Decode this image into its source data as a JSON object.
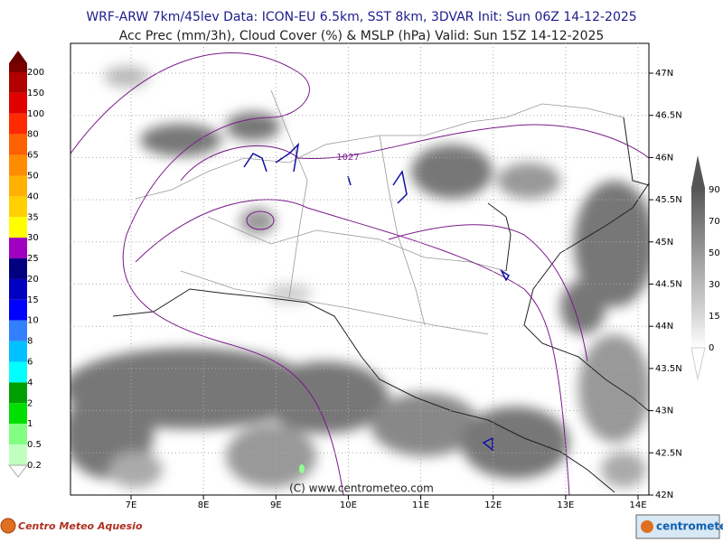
{
  "header": {
    "line1": "WRF-ARW 7km/45lev  Data: ICON-EU 6.5km, SST 8km, 3DVAR  Init: Sun 06Z 14-12-2025",
    "line2": "Acc Prec (mm/3h), Cloud Cover (%) & MSLP (hPa)  Valid: Sun 15Z 14-12-2025"
  },
  "precip_legend": {
    "labels": [
      "200",
      "150",
      "100",
      "80",
      "65",
      "50",
      "40",
      "35",
      "30",
      "25",
      "20",
      "15",
      "10",
      "8",
      "6",
      "4",
      "2",
      "1",
      "0.5",
      "0.2"
    ]
  },
  "cloud_legend": {
    "labels": [
      "90",
      "70",
      "50",
      "30",
      "15",
      "0"
    ]
  },
  "map": {
    "lat_labels": [
      "47N",
      "46.5N",
      "46N",
      "45.5N",
      "45N",
      "44.5N",
      "44N",
      "43.5N",
      "43N",
      "42.5N",
      "42N"
    ],
    "lon_labels": [
      "7E",
      "8E",
      "9E",
      "10E",
      "11E",
      "12E",
      "13E",
      "14E"
    ],
    "isobar_label": "1027",
    "copyright": "(C) www.centrometeo.com"
  },
  "footer": {
    "left_logo": "Centro Meteo Aquesio",
    "right_logo": "centrometeo"
  }
}
